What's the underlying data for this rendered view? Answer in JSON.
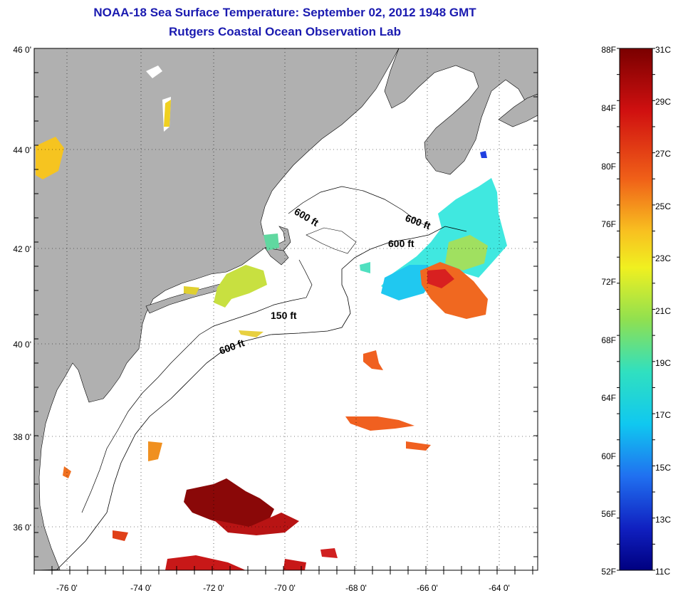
{
  "title": {
    "line1": "NOAA-18 Sea Surface Temperature:  September 02, 2012 1948 GMT",
    "line2": "Rutgers Coastal Ocean Observation Lab"
  },
  "axes": {
    "lat_labels": [
      "46 0'",
      "44 0'",
      "42 0'",
      "40 0'",
      "38 0'",
      "36 0'"
    ],
    "lon_labels": [
      "-76 0'",
      "-74 0'",
      "-72 0'",
      "-70 0'",
      "-68 0'",
      "-66 0'",
      "-64 0'"
    ]
  },
  "contours": {
    "labels": [
      "600 ft",
      "600 ft",
      "600 ft",
      "150 ft",
      "600 ft"
    ]
  },
  "colorbar": {
    "fahrenheit": [
      "88F",
      "84F",
      "80F",
      "76F",
      "72F",
      "68F",
      "64F",
      "60F",
      "56F",
      "52F"
    ],
    "celsius": [
      "31C",
      "29C",
      "27C",
      "25C",
      "23C",
      "21C",
      "19C",
      "17C",
      "15C",
      "13C",
      "11C"
    ]
  },
  "colors": {
    "land": "#b0b0b0",
    "title": "#1a1ab0",
    "warmest": "#7a0000",
    "coldest": "#000080"
  }
}
